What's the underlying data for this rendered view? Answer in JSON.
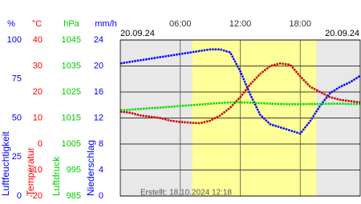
{
  "chart_data": {
    "type": "line",
    "date_left": "20.09.24",
    "date_right": "20.09.24",
    "footer": "Erstellt: 18.10.2024 12:18",
    "xlim": [
      0,
      24
    ],
    "xticks": [
      {
        "value": 6,
        "label": "06:00"
      },
      {
        "value": 12,
        "label": "12:00"
      },
      {
        "value": 18,
        "label": "18:00"
      }
    ],
    "daylight": [
      7.2,
      19.6
    ],
    "axes": [
      {
        "unit": "%",
        "title": "Luftfeuchtigkeit",
        "color": "#0000ff",
        "ylim": [
          0,
          100
        ],
        "yticks": [
          0,
          25,
          50,
          75,
          100
        ]
      },
      {
        "unit": "°C",
        "title": "Temperatur",
        "color": "#ff0000",
        "ylim": [
          -20,
          40
        ],
        "yticks": [
          -20,
          -10,
          0,
          10,
          20,
          30,
          40
        ]
      },
      {
        "unit": "hPa",
        "title": "Luftdruck",
        "color": "#00cc00",
        "ylim": [
          985,
          1045
        ],
        "yticks": [
          985,
          995,
          1005,
          1015,
          1025,
          1035,
          1045
        ]
      },
      {
        "unit": "mm/h",
        "title": "Niederschlag",
        "color": "#0000ff",
        "ylim": [
          0,
          24
        ],
        "yticks": [
          0,
          4,
          8,
          12,
          16,
          20,
          24
        ]
      }
    ],
    "x": [
      0,
      1,
      2,
      3,
      4,
      5,
      6,
      7,
      8,
      9,
      10,
      11,
      12,
      13,
      14,
      15,
      16,
      17,
      18,
      19,
      20,
      21,
      22,
      23,
      24
    ],
    "series": [
      {
        "axis": 0,
        "color": "#0000ff",
        "values": [
          85,
          86,
          87,
          88,
          89,
          90,
          91,
          92,
          93,
          94,
          94,
          92,
          80,
          65,
          52,
          46,
          44,
          42,
          40,
          48,
          58,
          66,
          70,
          73,
          77
        ]
      },
      {
        "axis": 1,
        "color": "#cc0000",
        "values": [
          12.5,
          12,
          11,
          10.5,
          10,
          9,
          8.5,
          8.2,
          8,
          9,
          11,
          14,
          18,
          23,
          27,
          30,
          31,
          30.5,
          26,
          22,
          20,
          18,
          17,
          16.5,
          16
        ]
      },
      {
        "axis": 2,
        "color": "#00dd00",
        "values": [
          1018,
          1018.2,
          1018.5,
          1018.8,
          1019,
          1019.3,
          1019.6,
          1019.9,
          1020.2,
          1020.5,
          1020.8,
          1021,
          1021,
          1020.9,
          1020.7,
          1020.5,
          1020.4,
          1020.3,
          1020.3,
          1020.4,
          1020.4,
          1020.5,
          1020.5,
          1020.4,
          1020.4
        ]
      }
    ]
  }
}
